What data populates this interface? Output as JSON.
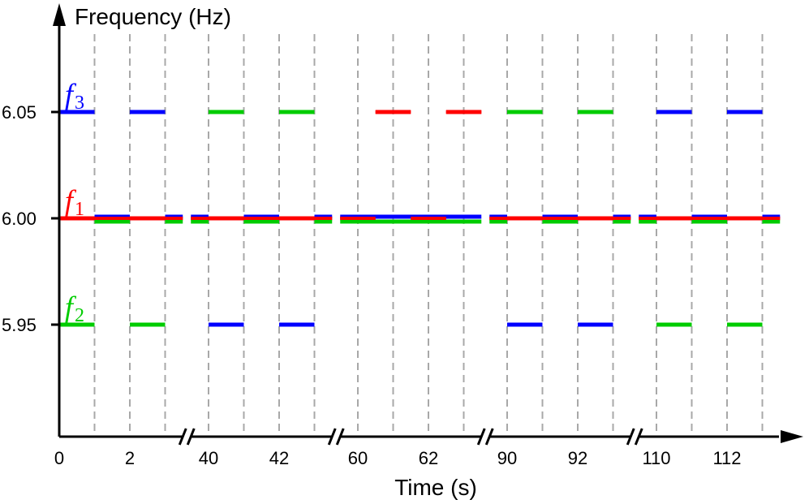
{
  "chart_data": {
    "type": "line",
    "xlabel": "Time (s)",
    "ylabel": "Frequency (Hz)",
    "x_axis": {
      "broken": true,
      "segments": [
        {
          "range": [
            0,
            3.5
          ],
          "ticks": [
            0,
            2
          ]
        },
        {
          "range": [
            39.5,
            43.5
          ],
          "ticks": [
            40,
            42
          ]
        },
        {
          "range": [
            59.5,
            63.5
          ],
          "ticks": [
            60,
            62
          ]
        },
        {
          "range": [
            89.5,
            93.5
          ],
          "ticks": [
            90,
            92
          ]
        },
        {
          "range": [
            109.5,
            113.5
          ],
          "ticks": [
            110,
            112
          ]
        }
      ]
    },
    "y_axis": {
      "range": [
        5.895,
        6.075
      ],
      "ticks": [
        {
          "value": 6.05,
          "label": "6.05"
        },
        {
          "value": 6.0,
          "label": "6.00"
        },
        {
          "value": 5.95,
          "label": "5.95"
        }
      ]
    },
    "grid": {
      "type": "vertical-dashed",
      "period_s": 1
    },
    "labels": [
      {
        "base": "f",
        "sub": "1",
        "color": "#ff0000",
        "y": 6.0
      },
      {
        "base": "f",
        "sub": "2",
        "color": "#00cc00",
        "y": 5.95
      },
      {
        "base": "f",
        "sub": "3",
        "color": "#0000ff",
        "y": 6.05
      }
    ],
    "series": [
      {
        "color": "#ff0000",
        "segments": [
          {
            "t0": 0,
            "t1": 3.5,
            "y": 6.0
          },
          {
            "t0": 39.5,
            "t1": 43.5,
            "y": 6.0
          },
          {
            "t0": 59.5,
            "t1": 60.5,
            "y": 6.0
          },
          {
            "t0": 60.5,
            "t1": 61.5,
            "y": 6.05
          },
          {
            "t0": 61.5,
            "t1": 62.5,
            "y": 6.0
          },
          {
            "t0": 62.5,
            "t1": 63.5,
            "y": 6.05
          },
          {
            "t0": 89.5,
            "t1": 93.5,
            "y": 6.0
          },
          {
            "t0": 109.5,
            "t1": 113.5,
            "y": 6.0
          }
        ]
      },
      {
        "color": "#00cc00",
        "segments": [
          {
            "t0": 0,
            "t1": 1,
            "y": 5.95
          },
          {
            "t0": 1,
            "t1": 2,
            "y": 6.0
          },
          {
            "t0": 2,
            "t1": 3,
            "y": 5.95
          },
          {
            "t0": 3,
            "t1": 3.5,
            "y": 6.0
          },
          {
            "t0": 39.5,
            "t1": 40,
            "y": 6.0
          },
          {
            "t0": 40,
            "t1": 41,
            "y": 6.05
          },
          {
            "t0": 41,
            "t1": 42,
            "y": 6.0
          },
          {
            "t0": 42,
            "t1": 43,
            "y": 6.05
          },
          {
            "t0": 43,
            "t1": 43.5,
            "y": 6.0
          },
          {
            "t0": 59.5,
            "t1": 63.5,
            "y": 6.0
          },
          {
            "t0": 89.5,
            "t1": 90,
            "y": 6.0
          },
          {
            "t0": 90,
            "t1": 91,
            "y": 6.05
          },
          {
            "t0": 91,
            "t1": 92,
            "y": 6.0
          },
          {
            "t0": 92,
            "t1": 93,
            "y": 6.05
          },
          {
            "t0": 93,
            "t1": 93.5,
            "y": 6.0
          },
          {
            "t0": 109.5,
            "t1": 110,
            "y": 6.0
          },
          {
            "t0": 110,
            "t1": 111,
            "y": 5.95
          },
          {
            "t0": 111,
            "t1": 112,
            "y": 6.0
          },
          {
            "t0": 112,
            "t1": 113,
            "y": 5.95
          },
          {
            "t0": 113,
            "t1": 113.5,
            "y": 6.0
          }
        ]
      },
      {
        "color": "#0000ff",
        "segments": [
          {
            "t0": 0,
            "t1": 1,
            "y": 6.05
          },
          {
            "t0": 1,
            "t1": 2,
            "y": 6.0
          },
          {
            "t0": 2,
            "t1": 3,
            "y": 6.05
          },
          {
            "t0": 3,
            "t1": 3.5,
            "y": 6.0
          },
          {
            "t0": 39.5,
            "t1": 40,
            "y": 6.0
          },
          {
            "t0": 40,
            "t1": 41,
            "y": 5.95
          },
          {
            "t0": 41,
            "t1": 42,
            "y": 6.0
          },
          {
            "t0": 42,
            "t1": 43,
            "y": 5.95
          },
          {
            "t0": 43,
            "t1": 43.5,
            "y": 6.0
          },
          {
            "t0": 59.5,
            "t1": 63.5,
            "y": 6.0
          },
          {
            "t0": 89.5,
            "t1": 90,
            "y": 6.0
          },
          {
            "t0": 90,
            "t1": 91,
            "y": 5.95
          },
          {
            "t0": 91,
            "t1": 92,
            "y": 6.0
          },
          {
            "t0": 92,
            "t1": 93,
            "y": 5.95
          },
          {
            "t0": 93,
            "t1": 93.5,
            "y": 6.0
          },
          {
            "t0": 109.5,
            "t1": 110,
            "y": 6.0
          },
          {
            "t0": 110,
            "t1": 111,
            "y": 6.05
          },
          {
            "t0": 111,
            "t1": 112,
            "y": 6.0
          },
          {
            "t0": 112,
            "t1": 113,
            "y": 6.05
          },
          {
            "t0": 113,
            "t1": 113.5,
            "y": 6.0
          }
        ]
      }
    ]
  }
}
